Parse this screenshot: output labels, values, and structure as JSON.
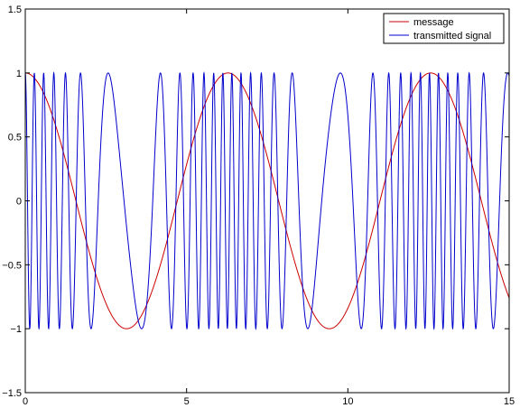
{
  "chart_data": {
    "type": "line",
    "title": "",
    "xlabel": "",
    "ylabel": "",
    "xlim": [
      0,
      15
    ],
    "ylim": [
      -1.5,
      1.5
    ],
    "grid": false,
    "legend_position": "top-right",
    "x_ticks": [
      "0",
      "5",
      "10",
      "15"
    ],
    "y_ticks": [
      "1.5",
      "1",
      "0.5",
      "0",
      "−0.5",
      "−1",
      "−1.5"
    ],
    "x_tick_values": [
      0,
      5,
      10,
      15
    ],
    "y_tick_values": [
      1.5,
      1,
      0.5,
      0,
      -0.5,
      -1,
      -1.5
    ],
    "series": [
      {
        "name": "message",
        "color": "#cc0000",
        "function": "cos(t)",
        "x": [
          0,
          0.5,
          1,
          1.5,
          2,
          2.5,
          3,
          3.1416,
          3.5,
          4,
          4.5,
          5,
          5.5,
          6,
          6.2832,
          6.5,
          7,
          7.5,
          8,
          8.5,
          9,
          9.4248,
          10,
          10.5,
          11,
          11.5,
          12,
          12.5664,
          13,
          13.5,
          14,
          14.5,
          15
        ],
        "y": [
          1,
          0.8776,
          0.5403,
          0.0707,
          -0.4161,
          -0.8011,
          -0.99,
          -1,
          -0.9365,
          -0.6536,
          -0.2108,
          0.2837,
          0.7087,
          0.9602,
          1,
          0.9766,
          0.7539,
          0.3466,
          -0.1455,
          -0.602,
          -0.9111,
          -1,
          -0.8391,
          -0.4755,
          0.0044,
          0.4833,
          0.8439,
          1,
          0.9074,
          0.5949,
          0.1367,
          -0.3549,
          -0.7597
        ]
      },
      {
        "name": "transmitted signal",
        "color": "#0000cc",
        "function": "cos(2*pi*2*t + 10*sin(t))",
        "y_range": [
          -1,
          1
        ]
      }
    ]
  }
}
